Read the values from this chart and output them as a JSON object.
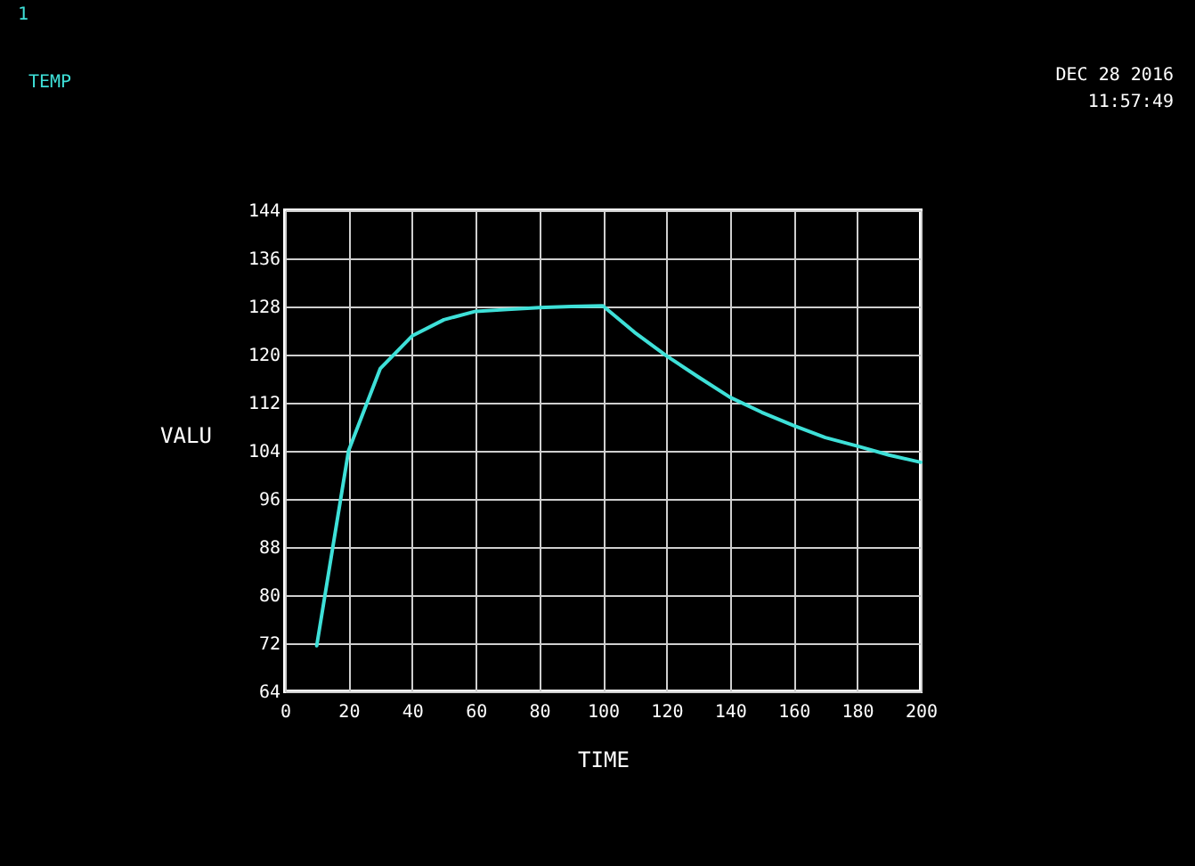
{
  "chart_data": {
    "type": "line",
    "xlabel": "TIME",
    "ylabel": "VALU",
    "x": [
      10,
      20,
      30,
      40,
      50,
      60,
      70,
      80,
      90,
      100,
      110,
      120,
      130,
      140,
      150,
      160,
      170,
      180,
      190,
      200
    ],
    "series": [
      {
        "name": "TEMP",
        "color": "#3ee0d8",
        "values": [
          71.6,
          104,
          117.7,
          123.1,
          125.8,
          127.2,
          127.5,
          127.8,
          128,
          128.1,
          123.7,
          119.8,
          116.3,
          112.9,
          110.4,
          108.2,
          106.2,
          104.8,
          103.3,
          102.1
        ]
      }
    ],
    "xlim": [
      0,
      200
    ],
    "ylim": [
      64,
      144
    ],
    "xticks": [
      0,
      20,
      40,
      60,
      80,
      100,
      120,
      140,
      160,
      180,
      200
    ],
    "yticks": [
      64,
      72,
      80,
      88,
      96,
      104,
      112,
      120,
      128,
      136,
      144
    ],
    "grid": true,
    "marker": "none",
    "line_style": "solid",
    "annotations": [
      "1",
      "DEC 28 2016",
      "11:57:49"
    ]
  }
}
